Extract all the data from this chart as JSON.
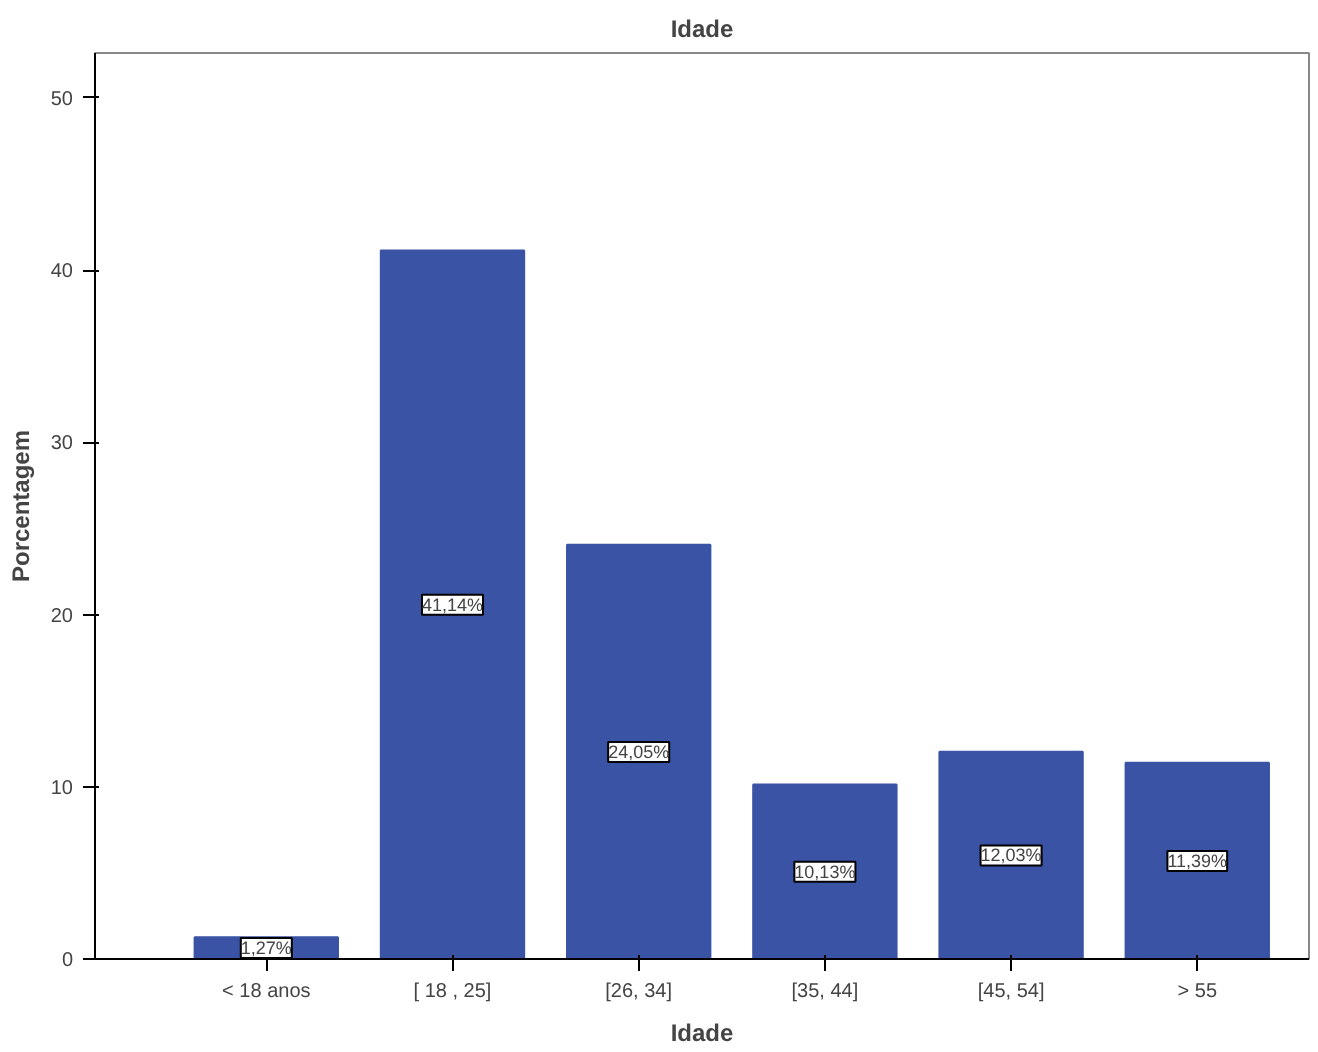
{
  "chart_data": {
    "type": "bar",
    "title": "Idade",
    "xlabel": "Idade",
    "ylabel": "Porcentagem",
    "categories": [
      "< 18 anos",
      "[ 18 , 25]",
      "[26, 34]",
      "[35, 44]",
      "[45, 54]",
      "> 55"
    ],
    "values": [
      1.27,
      41.14,
      24.05,
      10.13,
      12.03,
      11.39
    ],
    "value_labels": [
      "1,27%",
      "41,14%",
      "24,05%",
      "10,13%",
      "12,03%",
      "11,39%"
    ],
    "color": "#3a53a4",
    "ylim": [
      0,
      52.6
    ],
    "yticks": [
      0,
      10,
      20,
      30,
      40,
      50
    ],
    "grid": false
  }
}
